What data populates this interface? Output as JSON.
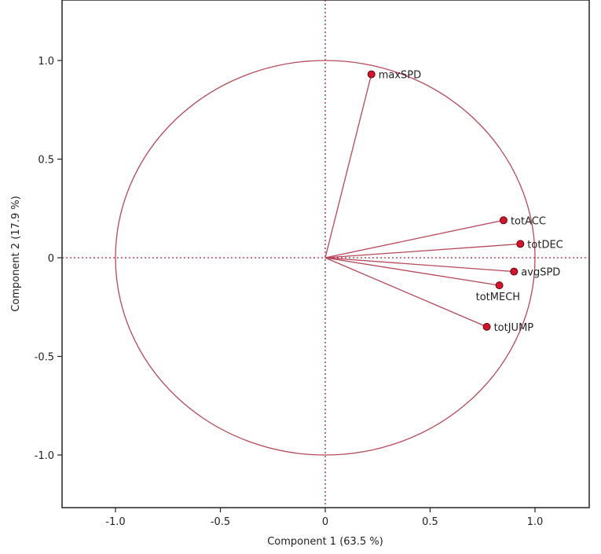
{
  "chart_data": {
    "type": "scatter",
    "title": "",
    "xlabel": "Component 1  (63.5 %)",
    "ylabel": "Component 2  (17.9 %)",
    "xlim": [
      -1.27,
      1.27
    ],
    "ylim": [
      -1.27,
      1.27
    ],
    "x_ticks": [
      -1.0,
      -0.5,
      0,
      0.5,
      1.0
    ],
    "x_tick_labels": [
      "-1.0",
      "-0.5",
      "0",
      "0.5",
      "1.0"
    ],
    "y_ticks": [
      1.0,
      0.5,
      0,
      -0.5,
      -1.0
    ],
    "y_tick_labels": [
      "1.0",
      "0.5",
      "0",
      "-0.5",
      "-1.0"
    ],
    "unit_circle": true,
    "reference_lines": "dotted at x=0 and y=0",
    "grid": false,
    "colors": {
      "vectors": "#b5485a",
      "points": "#d4142c",
      "reference": "#a0243a"
    },
    "points": [
      {
        "label": "maxSPD",
        "x": 0.22,
        "y": 0.93,
        "label_pos": "right"
      },
      {
        "label": "totACC",
        "x": 0.85,
        "y": 0.19,
        "label_pos": "right"
      },
      {
        "label": "totDEC",
        "x": 0.93,
        "y": 0.07,
        "label_pos": "right"
      },
      {
        "label": "avgSPD",
        "x": 0.9,
        "y": -0.07,
        "label_pos": "right"
      },
      {
        "label": "totMECH",
        "x": 0.83,
        "y": -0.14,
        "label_pos": "below"
      },
      {
        "label": "totJUMP",
        "x": 0.77,
        "y": -0.35,
        "label_pos": "right"
      }
    ]
  }
}
